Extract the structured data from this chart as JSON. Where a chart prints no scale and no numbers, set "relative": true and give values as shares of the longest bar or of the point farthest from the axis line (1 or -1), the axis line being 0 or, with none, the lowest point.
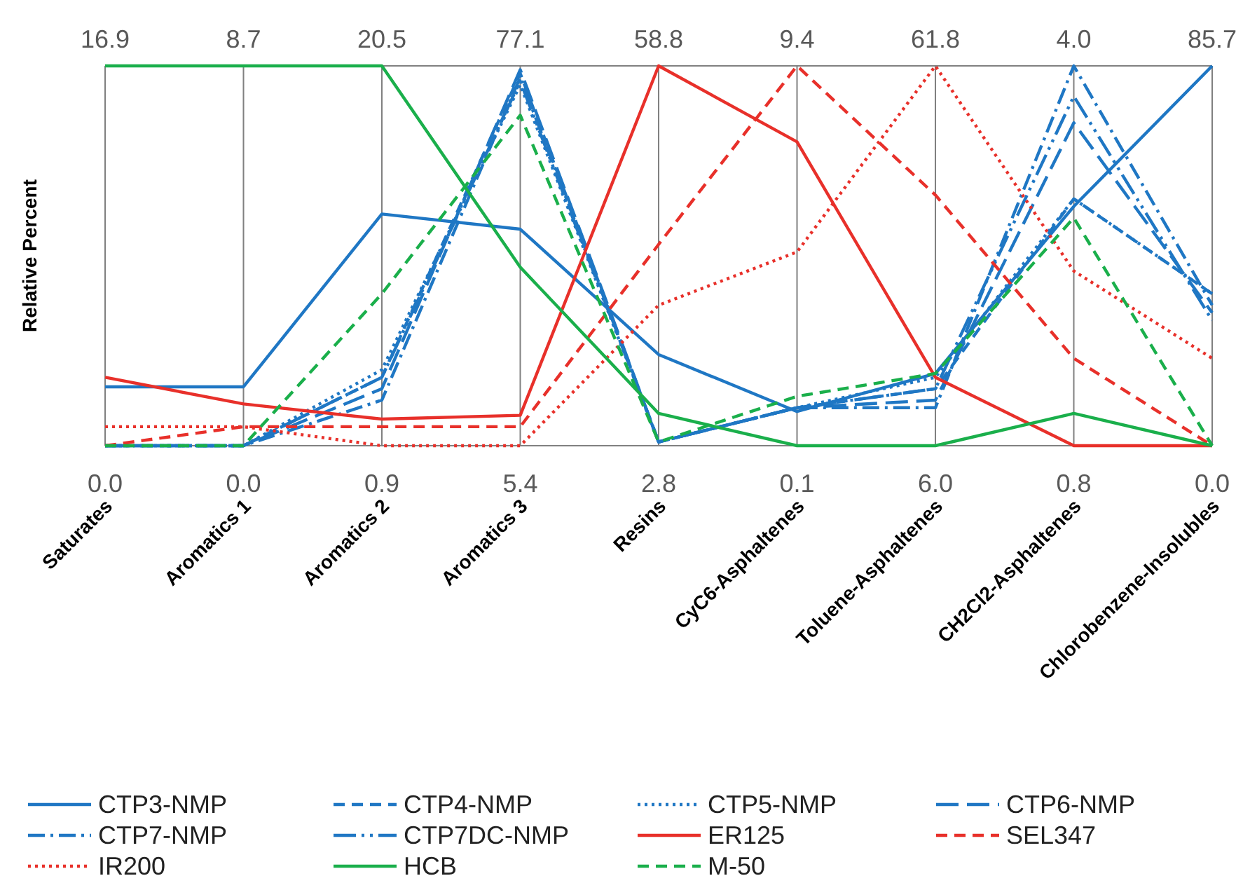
{
  "chart_data": {
    "type": "line",
    "relative": true,
    "ylabel": "Relative Percent",
    "grid": "x",
    "legend": "bottom",
    "categories": [
      "Saturates",
      "Aromatics 1",
      "Aromatics 2",
      "Aromatics 3",
      "Resins",
      "CyC6-Asphaltenes",
      "Toluene-Asphaltenes",
      "CH2Cl2-Asphaltenes",
      "Chlorobenzene-Insolubles"
    ],
    "series": [
      {
        "name": "CTP3-NMP",
        "color": "#1f77c4",
        "line_style": "solid",
        "values": [
          0.155,
          0.155,
          0.61,
          0.57,
          0.24,
          0.09,
          0.19,
          0.63,
          1.0
        ]
      },
      {
        "name": "CTP4-NMP",
        "color": "#1f77c4",
        "line_style": "dashed",
        "values": [
          0,
          0,
          0.18,
          0.98,
          0.01,
          0.1,
          0.15,
          0.65,
          0.4
        ]
      },
      {
        "name": "CTP5-NMP",
        "color": "#1f77c4",
        "line_style": "dotted",
        "values": [
          0,
          0,
          0.2,
          0.95,
          0.01,
          0.1,
          0.18,
          0.65,
          0.4
        ]
      },
      {
        "name": "CTP6-NMP",
        "color": "#1f77c4",
        "line_style": "longdash",
        "values": [
          0,
          0,
          0.15,
          0.99,
          0.01,
          0.1,
          0.12,
          0.85,
          0.35
        ]
      },
      {
        "name": "CTP7-NMP",
        "color": "#1f77c4",
        "line_style": "dashdot",
        "values": [
          0,
          0,
          0.12,
          0.97,
          0.01,
          0.1,
          0.1,
          1.0,
          0.37
        ]
      },
      {
        "name": "CTP7DC-NMP",
        "color": "#1f77c4",
        "line_style": "longdashdotdot",
        "values": [
          0,
          0,
          0.18,
          0.96,
          0.01,
          0.1,
          0.15,
          0.92,
          0.33
        ]
      },
      {
        "name": "ER125",
        "color": "#e8302a",
        "line_style": "solid",
        "values": [
          0.18,
          0.11,
          0.07,
          0.08,
          1.0,
          0.8,
          0.18,
          0,
          0
        ]
      },
      {
        "name": "SEL347",
        "color": "#e8302a",
        "line_style": "dashed",
        "values": [
          0,
          0.05,
          0.05,
          0.05,
          0.53,
          1.0,
          0.66,
          0.23,
          0
        ]
      },
      {
        "name": "IR200",
        "color": "#e8302a",
        "line_style": "dotted",
        "values": [
          0.05,
          0.05,
          0,
          0,
          0.37,
          0.51,
          1.0,
          0.46,
          0.23
        ]
      },
      {
        "name": "HCB",
        "color": "#1aaf4b",
        "line_style": "solid",
        "values": [
          1,
          1,
          1,
          0.47,
          0.085,
          0,
          0,
          0.085,
          0
        ]
      },
      {
        "name": "M-50",
        "color": "#1aaf4b",
        "line_style": "dashed",
        "values": [
          0,
          0,
          0.4,
          0.87,
          0.01,
          0.13,
          0.19,
          0.6,
          0
        ]
      }
    ],
    "annotations": [
      {
        "text": "16.9",
        "x": "Saturates",
        "y": 1
      },
      {
        "text": "8.7",
        "x": "Aromatics 1",
        "y": 1
      },
      {
        "text": "20.5",
        "x": "Aromatics 2",
        "y": 1
      },
      {
        "text": "77.1",
        "x": "Aromatics 3",
        "y": 1
      },
      {
        "text": "58.8",
        "x": "Resins",
        "y": 1
      },
      {
        "text": "9.4",
        "x": "CyC6-Asphaltenes",
        "y": 1
      },
      {
        "text": "61.8",
        "x": "Toluene-Asphaltenes",
        "y": 1
      },
      {
        "text": "4.0",
        "x": "CH2Cl2-Asphaltenes",
        "y": 1
      },
      {
        "text": "85.7",
        "x": "Chlorobenzene-Insolubles",
        "y": 1
      },
      {
        "text": "0.0",
        "x": "Saturates",
        "y": 0
      },
      {
        "text": "0.0",
        "x": "Aromatics 1",
        "y": 0
      },
      {
        "text": "0.9",
        "x": "Aromatics 2",
        "y": 0
      },
      {
        "text": "5.4",
        "x": "Aromatics 3",
        "y": 0
      },
      {
        "text": "2.8",
        "x": "Resins",
        "y": 0
      },
      {
        "text": "0.1",
        "x": "CyC6-Asphaltenes",
        "y": 0
      },
      {
        "text": "6.0",
        "x": "Toluene-Asphaltenes",
        "y": 0
      },
      {
        "text": "0.8",
        "x": "CH2Cl2-Asphaltenes",
        "y": 0
      },
      {
        "text": "0.0",
        "x": "Chlorobenzene-Insolubles",
        "y": 0
      }
    ]
  }
}
